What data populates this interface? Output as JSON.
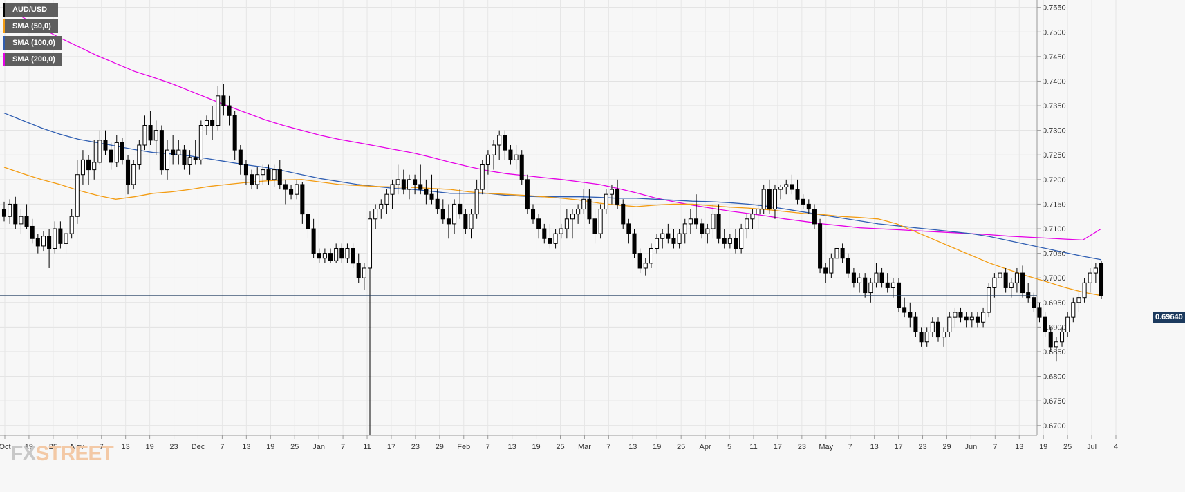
{
  "legend": [
    {
      "label": "AUD/USD",
      "color": "#000000"
    },
    {
      "label": "SMA (50,0)",
      "color": "#f39c12"
    },
    {
      "label": "SMA (100,0)",
      "color": "#2f5eb2"
    },
    {
      "label": "SMA (200,0)",
      "color": "#e600e6"
    }
  ],
  "logo": {
    "fx": "FX",
    "street": "STREET"
  },
  "current_price_label": "0.69640",
  "chart_data": {
    "type": "candlestick",
    "title": "",
    "symbol": "AUD/USD",
    "ylim": [
      0.668,
      0.7565
    ],
    "y_ticks": [
      "0.7550",
      "0.7500",
      "0.7450",
      "0.7400",
      "0.7350",
      "0.7300",
      "0.7250",
      "0.7200",
      "0.7150",
      "0.7100",
      "0.7050",
      "0.7000",
      "0.6950",
      "0.6900",
      "0.6850",
      "0.6800",
      "0.6750",
      "0.6700"
    ],
    "x_ticks": [
      "Oct",
      "19",
      "25",
      "Nov",
      "7",
      "13",
      "19",
      "23",
      "Dec",
      "7",
      "13",
      "19",
      "25",
      "Jan",
      "7",
      "11",
      "17",
      "23",
      "29",
      "Feb",
      "7",
      "13",
      "19",
      "25",
      "Mar",
      "7",
      "13",
      "19",
      "25",
      "Apr",
      "5",
      "11",
      "17",
      "23",
      "May",
      "7",
      "13",
      "17",
      "23",
      "29",
      "Jun",
      "7",
      "13",
      "19",
      "25",
      "Jul",
      "4"
    ],
    "current_price": 0.6964,
    "candles": [
      [
        0.714,
        0.7155,
        0.7115,
        0.7125
      ],
      [
        0.7125,
        0.716,
        0.711,
        0.715
      ],
      [
        0.715,
        0.7165,
        0.71,
        0.711
      ],
      [
        0.711,
        0.714,
        0.709,
        0.7125
      ],
      [
        0.7125,
        0.715,
        0.71,
        0.7105
      ],
      [
        0.7105,
        0.712,
        0.707,
        0.708
      ],
      [
        0.708,
        0.709,
        0.705,
        0.7065
      ],
      [
        0.7065,
        0.7095,
        0.7055,
        0.7085
      ],
      [
        0.7085,
        0.71,
        0.702,
        0.706
      ],
      [
        0.706,
        0.7115,
        0.705,
        0.71
      ],
      [
        0.71,
        0.7115,
        0.706,
        0.707
      ],
      [
        0.707,
        0.71,
        0.705,
        0.709
      ],
      [
        0.709,
        0.714,
        0.708,
        0.7125
      ],
      [
        0.7125,
        0.724,
        0.711,
        0.721
      ],
      [
        0.721,
        0.726,
        0.719,
        0.724
      ],
      [
        0.724,
        0.725,
        0.719,
        0.722
      ],
      [
        0.722,
        0.728,
        0.72,
        0.7235
      ],
      [
        0.7235,
        0.73,
        0.723,
        0.728
      ],
      [
        0.728,
        0.73,
        0.725,
        0.726
      ],
      [
        0.726,
        0.7275,
        0.722,
        0.7235
      ],
      [
        0.7235,
        0.729,
        0.7225,
        0.7275
      ],
      [
        0.7275,
        0.7285,
        0.723,
        0.724
      ],
      [
        0.724,
        0.725,
        0.717,
        0.719
      ],
      [
        0.719,
        0.724,
        0.718,
        0.723
      ],
      [
        0.723,
        0.728,
        0.722,
        0.727
      ],
      [
        0.727,
        0.733,
        0.726,
        0.731
      ],
      [
        0.731,
        0.734,
        0.727,
        0.728
      ],
      [
        0.728,
        0.732,
        0.725,
        0.73
      ],
      [
        0.73,
        0.731,
        0.721,
        0.722
      ],
      [
        0.722,
        0.728,
        0.72,
        0.726
      ],
      [
        0.726,
        0.729,
        0.723,
        0.725
      ],
      [
        0.725,
        0.728,
        0.723,
        0.726
      ],
      [
        0.726,
        0.727,
        0.722,
        0.723
      ],
      [
        0.723,
        0.726,
        0.721,
        0.7245
      ],
      [
        0.7245,
        0.728,
        0.723,
        0.724
      ],
      [
        0.724,
        0.732,
        0.723,
        0.731
      ],
      [
        0.731,
        0.733,
        0.729,
        0.732
      ],
      [
        0.732,
        0.735,
        0.728,
        0.731
      ],
      [
        0.731,
        0.739,
        0.73,
        0.737
      ],
      [
        0.737,
        0.7395,
        0.733,
        0.735
      ],
      [
        0.735,
        0.737,
        0.731,
        0.733
      ],
      [
        0.733,
        0.734,
        0.724,
        0.726
      ],
      [
        0.726,
        0.727,
        0.721,
        0.723
      ],
      [
        0.723,
        0.724,
        0.719,
        0.721
      ],
      [
        0.721,
        0.722,
        0.718,
        0.719
      ],
      [
        0.719,
        0.7225,
        0.718,
        0.721
      ],
      [
        0.721,
        0.723,
        0.719,
        0.722
      ],
      [
        0.722,
        0.723,
        0.719,
        0.72
      ],
      [
        0.72,
        0.723,
        0.7185,
        0.722
      ],
      [
        0.722,
        0.724,
        0.718,
        0.719
      ],
      [
        0.719,
        0.72,
        0.715,
        0.718
      ],
      [
        0.718,
        0.719,
        0.716,
        0.717
      ],
      [
        0.717,
        0.72,
        0.716,
        0.719
      ],
      [
        0.719,
        0.7195,
        0.711,
        0.713
      ],
      [
        0.713,
        0.714,
        0.708,
        0.71
      ],
      [
        0.71,
        0.712,
        0.704,
        0.705
      ],
      [
        0.705,
        0.706,
        0.703,
        0.704
      ],
      [
        0.704,
        0.706,
        0.703,
        0.705
      ],
      [
        0.705,
        0.706,
        0.703,
        0.7035
      ],
      [
        0.7035,
        0.707,
        0.703,
        0.706
      ],
      [
        0.706,
        0.707,
        0.703,
        0.704
      ],
      [
        0.704,
        0.707,
        0.703,
        0.706
      ],
      [
        0.706,
        0.707,
        0.702,
        0.703
      ],
      [
        0.703,
        0.705,
        0.699,
        0.7
      ],
      [
        0.7,
        0.703,
        0.6975,
        0.702
      ],
      [
        0.702,
        0.7135,
        0.668,
        0.712
      ],
      [
        0.712,
        0.715,
        0.71,
        0.714
      ],
      [
        0.714,
        0.716,
        0.712,
        0.715
      ],
      [
        0.715,
        0.718,
        0.713,
        0.717
      ],
      [
        0.717,
        0.72,
        0.714,
        0.719
      ],
      [
        0.719,
        0.723,
        0.717,
        0.72
      ],
      [
        0.72,
        0.722,
        0.717,
        0.718
      ],
      [
        0.718,
        0.721,
        0.716,
        0.72
      ],
      [
        0.72,
        0.721,
        0.717,
        0.719
      ],
      [
        0.719,
        0.723,
        0.717,
        0.718
      ],
      [
        0.718,
        0.72,
        0.715,
        0.717
      ],
      [
        0.717,
        0.721,
        0.715,
        0.716
      ],
      [
        0.716,
        0.718,
        0.713,
        0.714
      ],
      [
        0.714,
        0.716,
        0.711,
        0.712
      ],
      [
        0.712,
        0.715,
        0.708,
        0.711
      ],
      [
        0.711,
        0.716,
        0.709,
        0.715
      ],
      [
        0.715,
        0.718,
        0.712,
        0.713
      ],
      [
        0.713,
        0.714,
        0.709,
        0.71
      ],
      [
        0.71,
        0.714,
        0.708,
        0.713
      ],
      [
        0.713,
        0.72,
        0.712,
        0.718
      ],
      [
        0.718,
        0.724,
        0.717,
        0.723
      ],
      [
        0.723,
        0.726,
        0.721,
        0.725
      ],
      [
        0.725,
        0.728,
        0.722,
        0.727
      ],
      [
        0.727,
        0.73,
        0.724,
        0.729
      ],
      [
        0.729,
        0.73,
        0.724,
        0.726
      ],
      [
        0.726,
        0.727,
        0.723,
        0.724
      ],
      [
        0.724,
        0.727,
        0.722,
        0.725
      ],
      [
        0.725,
        0.726,
        0.719,
        0.72
      ],
      [
        0.72,
        0.721,
        0.713,
        0.714
      ],
      [
        0.714,
        0.715,
        0.711,
        0.712
      ],
      [
        0.712,
        0.713,
        0.708,
        0.71
      ],
      [
        0.71,
        0.711,
        0.707,
        0.708
      ],
      [
        0.708,
        0.711,
        0.706,
        0.707
      ],
      [
        0.707,
        0.71,
        0.706,
        0.709
      ],
      [
        0.709,
        0.711,
        0.708,
        0.71
      ],
      [
        0.71,
        0.714,
        0.708,
        0.712
      ],
      [
        0.712,
        0.714,
        0.708,
        0.713
      ],
      [
        0.713,
        0.715,
        0.711,
        0.714
      ],
      [
        0.714,
        0.718,
        0.713,
        0.716
      ],
      [
        0.716,
        0.718,
        0.711,
        0.712
      ],
      [
        0.712,
        0.714,
        0.707,
        0.709
      ],
      [
        0.709,
        0.715,
        0.708,
        0.714
      ],
      [
        0.714,
        0.718,
        0.713,
        0.717
      ],
      [
        0.717,
        0.719,
        0.715,
        0.718
      ],
      [
        0.718,
        0.72,
        0.714,
        0.715
      ],
      [
        0.715,
        0.716,
        0.71,
        0.711
      ],
      [
        0.711,
        0.712,
        0.707,
        0.709
      ],
      [
        0.709,
        0.71,
        0.704,
        0.705
      ],
      [
        0.705,
        0.706,
        0.701,
        0.702
      ],
      [
        0.702,
        0.704,
        0.7005,
        0.703
      ],
      [
        0.703,
        0.707,
        0.702,
        0.706
      ],
      [
        0.706,
        0.709,
        0.705,
        0.708
      ],
      [
        0.708,
        0.71,
        0.706,
        0.709
      ],
      [
        0.709,
        0.711,
        0.707,
        0.708
      ],
      [
        0.708,
        0.71,
        0.706,
        0.707
      ],
      [
        0.707,
        0.71,
        0.706,
        0.709
      ],
      [
        0.709,
        0.712,
        0.707,
        0.711
      ],
      [
        0.711,
        0.714,
        0.709,
        0.712
      ],
      [
        0.712,
        0.717,
        0.71,
        0.711
      ],
      [
        0.711,
        0.712,
        0.708,
        0.709
      ],
      [
        0.709,
        0.711,
        0.707,
        0.71
      ],
      [
        0.71,
        0.715,
        0.708,
        0.713
      ],
      [
        0.713,
        0.715,
        0.707,
        0.708
      ],
      [
        0.708,
        0.71,
        0.706,
        0.707
      ],
      [
        0.707,
        0.709,
        0.706,
        0.708
      ],
      [
        0.708,
        0.71,
        0.705,
        0.706
      ],
      [
        0.706,
        0.711,
        0.705,
        0.71
      ],
      [
        0.71,
        0.713,
        0.708,
        0.712
      ],
      [
        0.712,
        0.714,
        0.71,
        0.713
      ],
      [
        0.713,
        0.715,
        0.71,
        0.714
      ],
      [
        0.714,
        0.719,
        0.713,
        0.718
      ],
      [
        0.718,
        0.72,
        0.713,
        0.714
      ],
      [
        0.714,
        0.719,
        0.712,
        0.718
      ],
      [
        0.718,
        0.719,
        0.716,
        0.7185
      ],
      [
        0.7185,
        0.72,
        0.717,
        0.719
      ],
      [
        0.719,
        0.721,
        0.717,
        0.718
      ],
      [
        0.718,
        0.72,
        0.715,
        0.716
      ],
      [
        0.716,
        0.717,
        0.714,
        0.715
      ],
      [
        0.715,
        0.716,
        0.713,
        0.714
      ],
      [
        0.714,
        0.715,
        0.71,
        0.711
      ],
      [
        0.711,
        0.712,
        0.701,
        0.702
      ],
      [
        0.702,
        0.703,
        0.699,
        0.701
      ],
      [
        0.701,
        0.705,
        0.7,
        0.704
      ],
      [
        0.704,
        0.707,
        0.703,
        0.706
      ],
      [
        0.706,
        0.707,
        0.703,
        0.704
      ],
      [
        0.704,
        0.705,
        0.7,
        0.701
      ],
      [
        0.701,
        0.702,
        0.698,
        0.699
      ],
      [
        0.699,
        0.701,
        0.697,
        0.7
      ],
      [
        0.7,
        0.701,
        0.696,
        0.697
      ],
      [
        0.697,
        0.7,
        0.695,
        0.699
      ],
      [
        0.699,
        0.703,
        0.698,
        0.701
      ],
      [
        0.701,
        0.702,
        0.698,
        0.699
      ],
      [
        0.699,
        0.701,
        0.697,
        0.698
      ],
      [
        0.698,
        0.7,
        0.696,
        0.699
      ],
      [
        0.699,
        0.7,
        0.693,
        0.694
      ],
      [
        0.694,
        0.696,
        0.692,
        0.693
      ],
      [
        0.693,
        0.695,
        0.69,
        0.692
      ],
      [
        0.692,
        0.693,
        0.688,
        0.689
      ],
      [
        0.689,
        0.69,
        0.686,
        0.687
      ],
      [
        0.687,
        0.69,
        0.686,
        0.689
      ],
      [
        0.689,
        0.692,
        0.688,
        0.691
      ],
      [
        0.691,
        0.692,
        0.687,
        0.688
      ],
      [
        0.688,
        0.69,
        0.686,
        0.689
      ],
      [
        0.689,
        0.693,
        0.688,
        0.692
      ],
      [
        0.692,
        0.694,
        0.69,
        0.693
      ],
      [
        0.693,
        0.694,
        0.691,
        0.692
      ],
      [
        0.692,
        0.693,
        0.69,
        0.6915
      ],
      [
        0.6915,
        0.693,
        0.69,
        0.692
      ],
      [
        0.692,
        0.693,
        0.69,
        0.691
      ],
      [
        0.691,
        0.694,
        0.69,
        0.693
      ],
      [
        0.693,
        0.699,
        0.692,
        0.698
      ],
      [
        0.698,
        0.701,
        0.696,
        0.7
      ],
      [
        0.7,
        0.702,
        0.698,
        0.701
      ],
      [
        0.701,
        0.702,
        0.697,
        0.698
      ],
      [
        0.698,
        0.7,
        0.696,
        0.699
      ],
      [
        0.699,
        0.702,
        0.697,
        0.701
      ],
      [
        0.701,
        0.7025,
        0.696,
        0.697
      ],
      [
        0.697,
        0.699,
        0.695,
        0.696
      ],
      [
        0.696,
        0.697,
        0.693,
        0.694
      ],
      [
        0.694,
        0.695,
        0.691,
        0.692
      ],
      [
        0.692,
        0.693,
        0.688,
        0.689
      ],
      [
        0.689,
        0.69,
        0.685,
        0.686
      ],
      [
        0.686,
        0.688,
        0.683,
        0.687
      ],
      [
        0.687,
        0.69,
        0.686,
        0.689
      ],
      [
        0.689,
        0.693,
        0.688,
        0.692
      ],
      [
        0.692,
        0.696,
        0.691,
        0.695
      ],
      [
        0.695,
        0.697,
        0.693,
        0.696
      ],
      [
        0.696,
        0.7,
        0.695,
        0.699
      ],
      [
        0.699,
        0.702,
        0.697,
        0.701
      ],
      [
        0.701,
        0.703,
        0.699,
        0.702
      ],
      [
        0.703,
        0.7035,
        0.6958,
        0.6964
      ]
    ],
    "sma50": [
      0.7225,
      0.7212,
      0.72,
      0.719,
      0.7178,
      0.7168,
      0.716,
      0.7165,
      0.7172,
      0.7175,
      0.718,
      0.7186,
      0.719,
      0.7194,
      0.7197,
      0.7199,
      0.72,
      0.7195,
      0.719,
      0.7188,
      0.7186,
      0.7185,
      0.7184,
      0.7182,
      0.718,
      0.7175,
      0.7172,
      0.717,
      0.7168,
      0.7165,
      0.7162,
      0.7158,
      0.7152,
      0.7148,
      0.7145,
      0.7148,
      0.715,
      0.715,
      0.7147,
      0.7144,
      0.7142,
      0.7139,
      0.7135,
      0.7131,
      0.7129,
      0.7125,
      0.7123,
      0.712,
      0.711,
      0.7094,
      0.7078,
      0.7062,
      0.7046,
      0.703,
      0.7017,
      0.7004,
      0.6993,
      0.6981,
      0.6971,
      0.6964
    ],
    "sma100": [
      0.7335,
      0.732,
      0.7305,
      0.7292,
      0.7282,
      0.7275,
      0.7268,
      0.7261,
      0.7255,
      0.7252,
      0.7248,
      0.7242,
      0.7236,
      0.723,
      0.7225,
      0.7218,
      0.721,
      0.7202,
      0.7196,
      0.719,
      0.7186,
      0.7182,
      0.718,
      0.7176,
      0.7172,
      0.7172,
      0.7172,
      0.7168,
      0.7166,
      0.7165,
      0.7165,
      0.7165,
      0.7164,
      0.7162,
      0.7162,
      0.716,
      0.7158,
      0.7156,
      0.7155,
      0.7153,
      0.715,
      0.7146,
      0.714,
      0.7134,
      0.7128,
      0.7122,
      0.7116,
      0.711,
      0.7106,
      0.7102,
      0.7098,
      0.7094,
      0.709,
      0.7084,
      0.7076,
      0.7068,
      0.706,
      0.7052,
      0.7044,
      0.7037
    ],
    "sma200": [
      0.7555,
      0.753,
      0.7508,
      0.7488,
      0.747,
      0.7452,
      0.7436,
      0.742,
      0.7408,
      0.7395,
      0.738,
      0.7365,
      0.735,
      0.7336,
      0.7322,
      0.731,
      0.73,
      0.729,
      0.7282,
      0.7275,
      0.7268,
      0.7261,
      0.7254,
      0.7245,
      0.7235,
      0.7226,
      0.7218,
      0.7212,
      0.7208,
      0.7204,
      0.72,
      0.7195,
      0.719,
      0.7182,
      0.7173,
      0.7163,
      0.7155,
      0.7148,
      0.7142,
      0.7136,
      0.7131,
      0.7126,
      0.712,
      0.7115,
      0.711,
      0.7106,
      0.7102,
      0.71,
      0.7098,
      0.7096,
      0.7094,
      0.7092,
      0.709,
      0.7088,
      0.7085,
      0.7083,
      0.7081,
      0.7079,
      0.7077,
      0.71
    ]
  }
}
